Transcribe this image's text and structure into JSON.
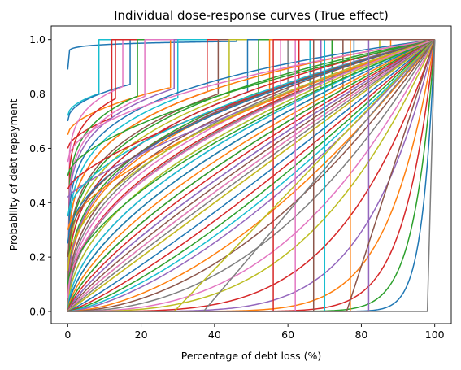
{
  "chart_data": {
    "type": "line",
    "title": "Individual dose-response curves (True effect)",
    "xlabel": "Percentage of debt loss (%)",
    "ylabel": "Probability of debt repayment",
    "xlim": [
      -4.5,
      104.5
    ],
    "ylim": [
      -0.045,
      1.05
    ],
    "x_ticks": [
      0,
      20,
      40,
      60,
      80,
      100
    ],
    "y_ticks": [
      0.0,
      0.2,
      0.4,
      0.6,
      0.8,
      1.0
    ],
    "x_tick_labels": [
      "0",
      "20",
      "40",
      "60",
      "80",
      "100"
    ],
    "y_tick_labels": [
      "0.0",
      "0.2",
      "0.4",
      "0.6",
      "0.8",
      "1.0"
    ],
    "grid": false,
    "legend": "none",
    "palette": [
      "#1f77b4",
      "#ff7f0e",
      "#2ca02c",
      "#d62728",
      "#9467bd",
      "#8c564b",
      "#e377c2",
      "#7f7f7f",
      "#bcbd22",
      "#17becf"
    ],
    "series": [
      {
        "kind": "concave_jump",
        "start": 0.89,
        "k": 0.08,
        "jump_at": 46,
        "color": "#1f77b4"
      },
      {
        "kind": "concave_jump",
        "start": 0.72,
        "k": 0.5,
        "jump_at": 8.5,
        "color": "#17becf"
      },
      {
        "kind": "concave_jump",
        "start": 0.7,
        "k": 0.45,
        "jump_at": 17,
        "color": "#1f77b4"
      },
      {
        "kind": "concave_jump",
        "start": 0.65,
        "k": 0.55,
        "jump_at": 28,
        "color": "#ff7f0e"
      },
      {
        "kind": "concave_jump",
        "start": 0.6,
        "k": 0.6,
        "jump_at": 12,
        "color": "#d62728"
      },
      {
        "kind": "concave_jump",
        "start": 0.0,
        "k": 0.1,
        "jump_at": 15,
        "color": "#e377c2"
      },
      {
        "kind": "concave_jump",
        "start": 0.0,
        "k": 0.12,
        "jump_at": 13,
        "color": "#d62728"
      },
      {
        "kind": "concave_jump",
        "start": 0.0,
        "k": 0.14,
        "jump_at": 19,
        "color": "#2ca02c"
      },
      {
        "kind": "concave_jump",
        "start": 0.0,
        "k": 0.15,
        "jump_at": 21,
        "color": "#e377c2"
      },
      {
        "kind": "concave_jump",
        "start": 0.0,
        "k": 0.16,
        "jump_at": 29,
        "color": "#9467bd"
      },
      {
        "kind": "concave_jump",
        "start": 0.0,
        "k": 0.2,
        "jump_at": 30,
        "color": "#17becf"
      },
      {
        "kind": "concave_jump",
        "start": 0.0,
        "k": 0.22,
        "jump_at": 38,
        "color": "#d62728"
      },
      {
        "kind": "concave_jump",
        "start": 0.0,
        "k": 0.25,
        "jump_at": 41,
        "color": "#8c564b"
      },
      {
        "kind": "concave_jump",
        "start": 0.0,
        "k": 0.28,
        "jump_at": 44,
        "color": "#bcbd22"
      },
      {
        "kind": "concave_jump",
        "start": 0.0,
        "k": 0.3,
        "jump_at": 49,
        "color": "#1f77b4"
      },
      {
        "kind": "concave_jump",
        "start": 0.0,
        "k": 0.33,
        "jump_at": 52,
        "color": "#2ca02c"
      },
      {
        "kind": "concave_jump",
        "start": 0.0,
        "k": 0.35,
        "jump_at": 55,
        "color": "#ff7f0e"
      },
      {
        "kind": "concave_jump",
        "start": 0.0,
        "k": 0.38,
        "jump_at": 58,
        "color": "#e377c2"
      },
      {
        "kind": "concave_jump",
        "start": 0.0,
        "k": 0.4,
        "jump_at": 60,
        "color": "#7f7f7f"
      },
      {
        "kind": "concave_jump",
        "start": 0.0,
        "k": 0.45,
        "jump_at": 63,
        "color": "#d62728"
      },
      {
        "kind": "concave_jump",
        "start": 0.0,
        "k": 0.5,
        "jump_at": 66,
        "color": "#17becf"
      },
      {
        "kind": "concave_jump",
        "start": 0.0,
        "k": 0.55,
        "jump_at": 69,
        "color": "#9467bd"
      },
      {
        "kind": "concave_jump",
        "start": 0.0,
        "k": 0.6,
        "jump_at": 72,
        "color": "#2ca02c"
      },
      {
        "kind": "concave_jump",
        "start": 0.0,
        "k": 0.7,
        "jump_at": 75,
        "color": "#8c564b"
      },
      {
        "kind": "concave_jump",
        "start": 0.0,
        "k": 0.8,
        "jump_at": 78,
        "color": "#1f77b4"
      },
      {
        "kind": "concave_jump",
        "start": 0.0,
        "k": 0.9,
        "jump_at": 85,
        "color": "#bcbd22"
      },
      {
        "kind": "concave_jump",
        "start": 0.0,
        "k": 1.0,
        "jump_at": 88,
        "color": "#ff7f0e"
      },
      {
        "kind": "concave",
        "start": 0.0,
        "k": 0.18,
        "color": "#1f77b4"
      },
      {
        "kind": "concave",
        "start": 0.0,
        "k": 0.22,
        "color": "#ff7f0e"
      },
      {
        "kind": "concave",
        "start": 0.0,
        "k": 0.26,
        "color": "#2ca02c"
      },
      {
        "kind": "concave",
        "start": 0.0,
        "k": 0.3,
        "color": "#d62728"
      },
      {
        "kind": "concave",
        "start": 0.0,
        "k": 0.34,
        "color": "#9467bd"
      },
      {
        "kind": "concave",
        "start": 0.0,
        "k": 0.38,
        "color": "#8c564b"
      },
      {
        "kind": "concave",
        "start": 0.0,
        "k": 0.42,
        "color": "#e377c2"
      },
      {
        "kind": "concave",
        "start": 0.0,
        "k": 0.46,
        "color": "#7f7f7f"
      },
      {
        "kind": "concave",
        "start": 0.0,
        "k": 0.5,
        "color": "#bcbd22"
      },
      {
        "kind": "concave",
        "start": 0.0,
        "k": 0.55,
        "color": "#17becf"
      },
      {
        "kind": "concave",
        "start": 0.0,
        "k": 0.6,
        "color": "#1f77b4"
      },
      {
        "kind": "concave",
        "start": 0.0,
        "k": 0.65,
        "color": "#ff7f0e"
      },
      {
        "kind": "concave",
        "start": 0.0,
        "k": 0.7,
        "color": "#2ca02c"
      },
      {
        "kind": "concave",
        "start": 0.0,
        "k": 0.75,
        "color": "#d62728"
      },
      {
        "kind": "concave",
        "start": 0.0,
        "k": 0.8,
        "color": "#9467bd"
      },
      {
        "kind": "concave",
        "start": 0.0,
        "k": 0.85,
        "color": "#8c564b"
      },
      {
        "kind": "concave",
        "start": 0.0,
        "k": 0.9,
        "color": "#e377c2"
      },
      {
        "kind": "concave",
        "start": 0.0,
        "k": 0.95,
        "color": "#7f7f7f"
      },
      {
        "kind": "concave",
        "start": 0.0,
        "k": 1.0,
        "color": "#bcbd22"
      },
      {
        "kind": "concave",
        "start": 0.55,
        "k": 0.5,
        "color": "#e377c2"
      },
      {
        "kind": "concave",
        "start": 0.5,
        "k": 0.6,
        "color": "#2ca02c"
      },
      {
        "kind": "concave",
        "start": 0.45,
        "k": 0.7,
        "color": "#d62728"
      },
      {
        "kind": "concave",
        "start": 0.42,
        "k": 0.8,
        "color": "#9467bd"
      },
      {
        "kind": "concave",
        "start": 0.35,
        "k": 0.55,
        "color": "#17becf"
      },
      {
        "kind": "concave",
        "start": 0.3,
        "k": 0.65,
        "color": "#ff7f0e"
      },
      {
        "kind": "concave",
        "start": 0.25,
        "k": 0.5,
        "color": "#1f77b4"
      },
      {
        "kind": "concave",
        "start": 0.2,
        "k": 0.45,
        "color": "#8c564b"
      },
      {
        "kind": "concave",
        "start": 0.15,
        "k": 0.5,
        "color": "#bcbd22"
      },
      {
        "kind": "concave",
        "start": 0.1,
        "k": 0.6,
        "color": "#2ca02c"
      },
      {
        "kind": "concave",
        "start": 0.05,
        "k": 0.5,
        "color": "#e377c2"
      },
      {
        "kind": "concave",
        "start": 0.0,
        "k": 1.1,
        "color": "#1f77b4"
      },
      {
        "kind": "concave",
        "start": 0.0,
        "k": 1.2,
        "color": "#d62728"
      },
      {
        "kind": "concave",
        "start": 0.0,
        "k": 1.3,
        "color": "#2ca02c"
      },
      {
        "kind": "concave",
        "start": 0.0,
        "k": 1.4,
        "color": "#17becf"
      },
      {
        "kind": "concave",
        "start": 0.0,
        "k": 1.5,
        "color": "#9467bd"
      },
      {
        "kind": "concave",
        "start": 0.0,
        "k": 1.7,
        "color": "#ff7f0e"
      },
      {
        "kind": "concave",
        "start": 0.0,
        "k": 1.9,
        "color": "#8c564b"
      },
      {
        "kind": "concave",
        "start": 0.0,
        "k": 2.2,
        "color": "#7f7f7f"
      },
      {
        "kind": "concave",
        "start": 0.0,
        "k": 2.6,
        "color": "#e377c2"
      },
      {
        "kind": "concave",
        "start": 0.0,
        "k": 3.0,
        "color": "#bcbd22"
      },
      {
        "kind": "concave",
        "start": 0.0,
        "k": 4.0,
        "color": "#d62728"
      },
      {
        "kind": "concave",
        "start": 0.0,
        "k": 5.5,
        "color": "#9467bd"
      },
      {
        "kind": "concave",
        "start": 0.0,
        "k": 8.0,
        "color": "#ff7f0e"
      },
      {
        "kind": "concave",
        "start": 0.0,
        "k": 12.0,
        "color": "#d62728"
      },
      {
        "kind": "concave",
        "start": 0.0,
        "k": 18.0,
        "color": "#2ca02c"
      },
      {
        "kind": "concave",
        "start": 0.0,
        "k": 30.0,
        "color": "#1f77b4"
      },
      {
        "kind": "step",
        "low": 0.0,
        "high": 1.0,
        "at": 77,
        "color": "#ff7f0e"
      },
      {
        "kind": "step",
        "low": 0.0,
        "high": 1.0,
        "at": 82,
        "color": "#9467bd"
      },
      {
        "kind": "step",
        "low": 0.0,
        "high": 1.0,
        "at": 70,
        "color": "#17becf"
      },
      {
        "kind": "step",
        "low": 0.0,
        "high": 1.0,
        "at": 62,
        "color": "#e377c2"
      },
      {
        "kind": "step",
        "low": 0.0,
        "high": 1.0,
        "at": 56,
        "color": "#d62728"
      },
      {
        "kind": "step",
        "low": 0.0,
        "high": 1.0,
        "at": 67,
        "color": "#8c564b"
      },
      {
        "kind": "delayed_line",
        "from": 29,
        "color": "#bcbd22"
      },
      {
        "kind": "delayed_line",
        "from": 37,
        "color": "#7f7f7f"
      },
      {
        "kind": "delayed_line",
        "from": 76,
        "color": "#8c564b"
      },
      {
        "kind": "flat_then_up",
        "at": 98,
        "color": "#7f7f7f"
      }
    ]
  }
}
